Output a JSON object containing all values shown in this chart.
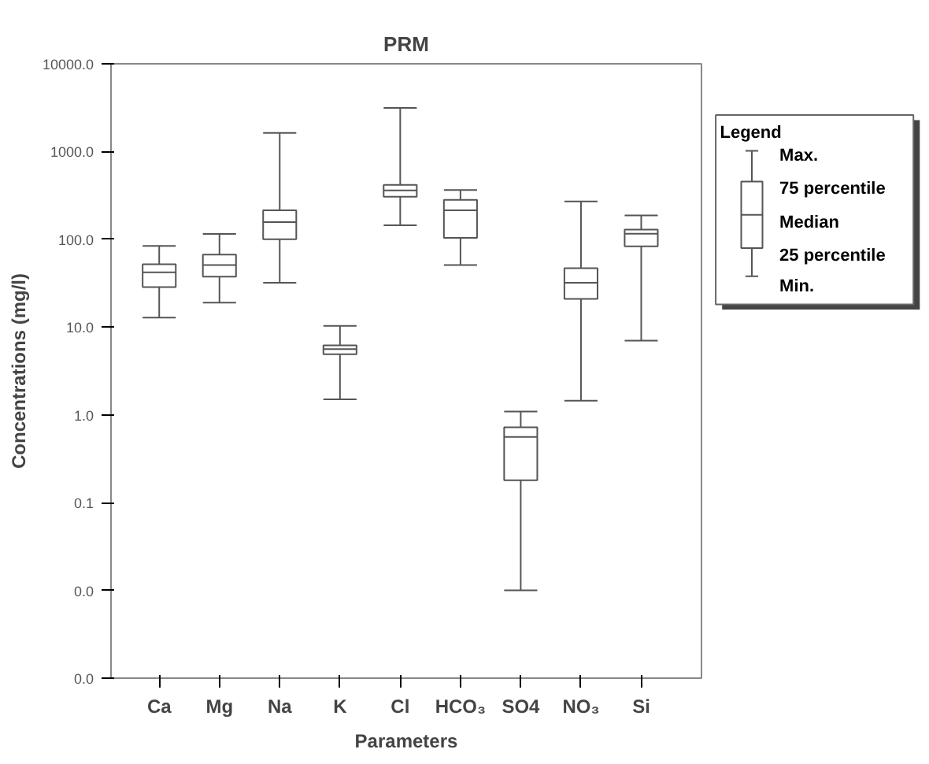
{
  "chart_data": {
    "type": "box",
    "title": "PRM",
    "xlabel": "Parameters",
    "ylabel": "Concentrations (mg/l)",
    "legend_title": "Legend",
    "annotations": [
      "Max.",
      "75 percentile",
      "Median",
      "25 percentile",
      "Min."
    ],
    "categories": [
      "Ca",
      "Mg",
      "Na",
      "K",
      "Cl",
      "HCO₃",
      "SO4",
      "NO₃",
      "Si"
    ],
    "boxes": [
      {
        "low": 12.8,
        "q1": 28.6,
        "median": 42,
        "q3": 52,
        "high": 84
      },
      {
        "low": 19,
        "q1": 37.5,
        "median": 51,
        "q3": 67,
        "high": 115
      },
      {
        "low": 32,
        "q1": 100,
        "median": 157,
        "q3": 214,
        "high": 1630
      },
      {
        "low": 1.5,
        "q1": 4.9,
        "median": 5.6,
        "q3": 6.2,
        "high": 10.3
      },
      {
        "low": 145,
        "q1": 306,
        "median": 360,
        "q3": 418,
        "high": 3140
      },
      {
        "low": 51,
        "q1": 104,
        "median": 214,
        "q3": 282,
        "high": 365
      },
      {
        "low": 0.01,
        "q1": 0.18,
        "median": 0.56,
        "q3": 0.72,
        "high": 1.09
      },
      {
        "low": 1.45,
        "q1": 21,
        "median": 32,
        "q3": 47,
        "high": 270
      },
      {
        "low": 7.0,
        "q1": 83,
        "median": 116,
        "q3": 129,
        "high": 187
      }
    ],
    "color": "#555555",
    "log": true,
    "ylim": [
      0.001,
      10000
    ],
    "yticks": [
      {
        "value": 0.001,
        "label": "0.0"
      },
      {
        "value": 0.01,
        "label": "0.0"
      },
      {
        "value": 0.1,
        "label": "0.1"
      },
      {
        "value": 1,
        "label": "1.0"
      },
      {
        "value": 10,
        "label": "10.0"
      },
      {
        "value": 100,
        "label": "100.0"
      },
      {
        "value": 1000,
        "label": "1000.0"
      },
      {
        "value": 10000,
        "label": "10000.0"
      }
    ],
    "grid": false
  }
}
